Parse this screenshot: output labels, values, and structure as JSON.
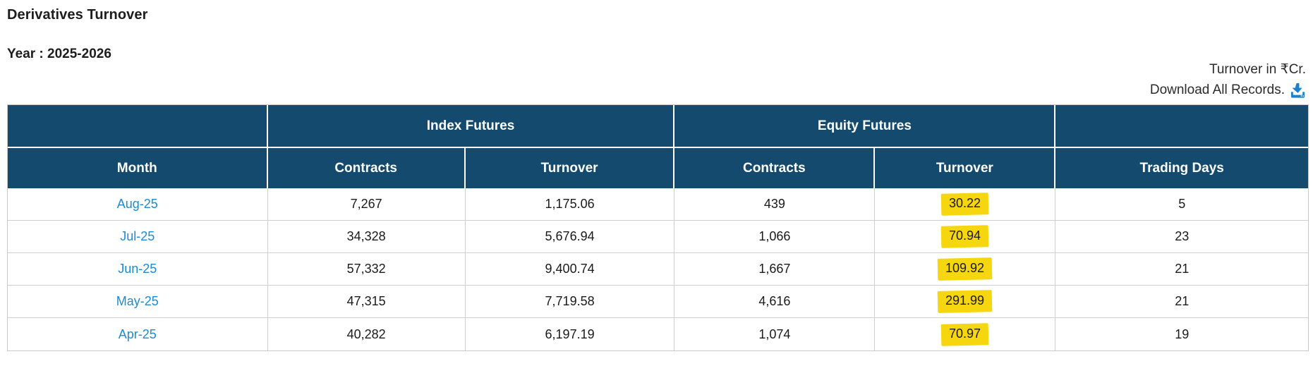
{
  "page": {
    "title": "Derivatives Turnover",
    "year_label": "Year : 2025-2026",
    "unit_note": "Turnover in ₹Cr.",
    "download_label": "Download All Records."
  },
  "colors": {
    "header_bg": "#134a6e",
    "link_blue": "#1b8bd4",
    "download_icon_blue": "#1a82cd",
    "highlight_yellow": "#f6d60e",
    "grid_line": "#cfcfcf"
  },
  "icons": {
    "download": "download-tray-arrow-icon"
  },
  "table": {
    "group_headers": [
      {
        "label": "",
        "colspan": 1
      },
      {
        "label": "Index Futures",
        "colspan": 2
      },
      {
        "label": "Equity Futures",
        "colspan": 2
      },
      {
        "label": "",
        "colspan": 1
      }
    ],
    "columns": [
      "Month",
      "Contracts",
      "Turnover",
      "Contracts",
      "Turnover",
      "Trading Days"
    ],
    "column_widths_pct": [
      20,
      15.2,
      16.1,
      15.4,
      13.9,
      19.4
    ],
    "rows": [
      {
        "month": "Aug-25",
        "index_contracts": "7,267",
        "index_turnover": "1,175.06",
        "equity_contracts": "439",
        "equity_turnover": "30.22",
        "equity_turnover_highlighted": true,
        "trading_days": "5"
      },
      {
        "month": "Jul-25",
        "index_contracts": "34,328",
        "index_turnover": "5,676.94",
        "equity_contracts": "1,066",
        "equity_turnover": "70.94",
        "equity_turnover_highlighted": true,
        "trading_days": "23"
      },
      {
        "month": "Jun-25",
        "index_contracts": "57,332",
        "index_turnover": "9,400.74",
        "equity_contracts": "1,667",
        "equity_turnover": "109.92",
        "equity_turnover_highlighted": true,
        "trading_days": "21"
      },
      {
        "month": "May-25",
        "index_contracts": "47,315",
        "index_turnover": "7,719.58",
        "equity_contracts": "4,616",
        "equity_turnover": "291.99",
        "equity_turnover_highlighted": true,
        "trading_days": "21"
      },
      {
        "month": "Apr-25",
        "index_contracts": "40,282",
        "index_turnover": "6,197.19",
        "equity_contracts": "1,074",
        "equity_turnover": "70.97",
        "equity_turnover_highlighted": true,
        "trading_days": "19"
      }
    ]
  }
}
